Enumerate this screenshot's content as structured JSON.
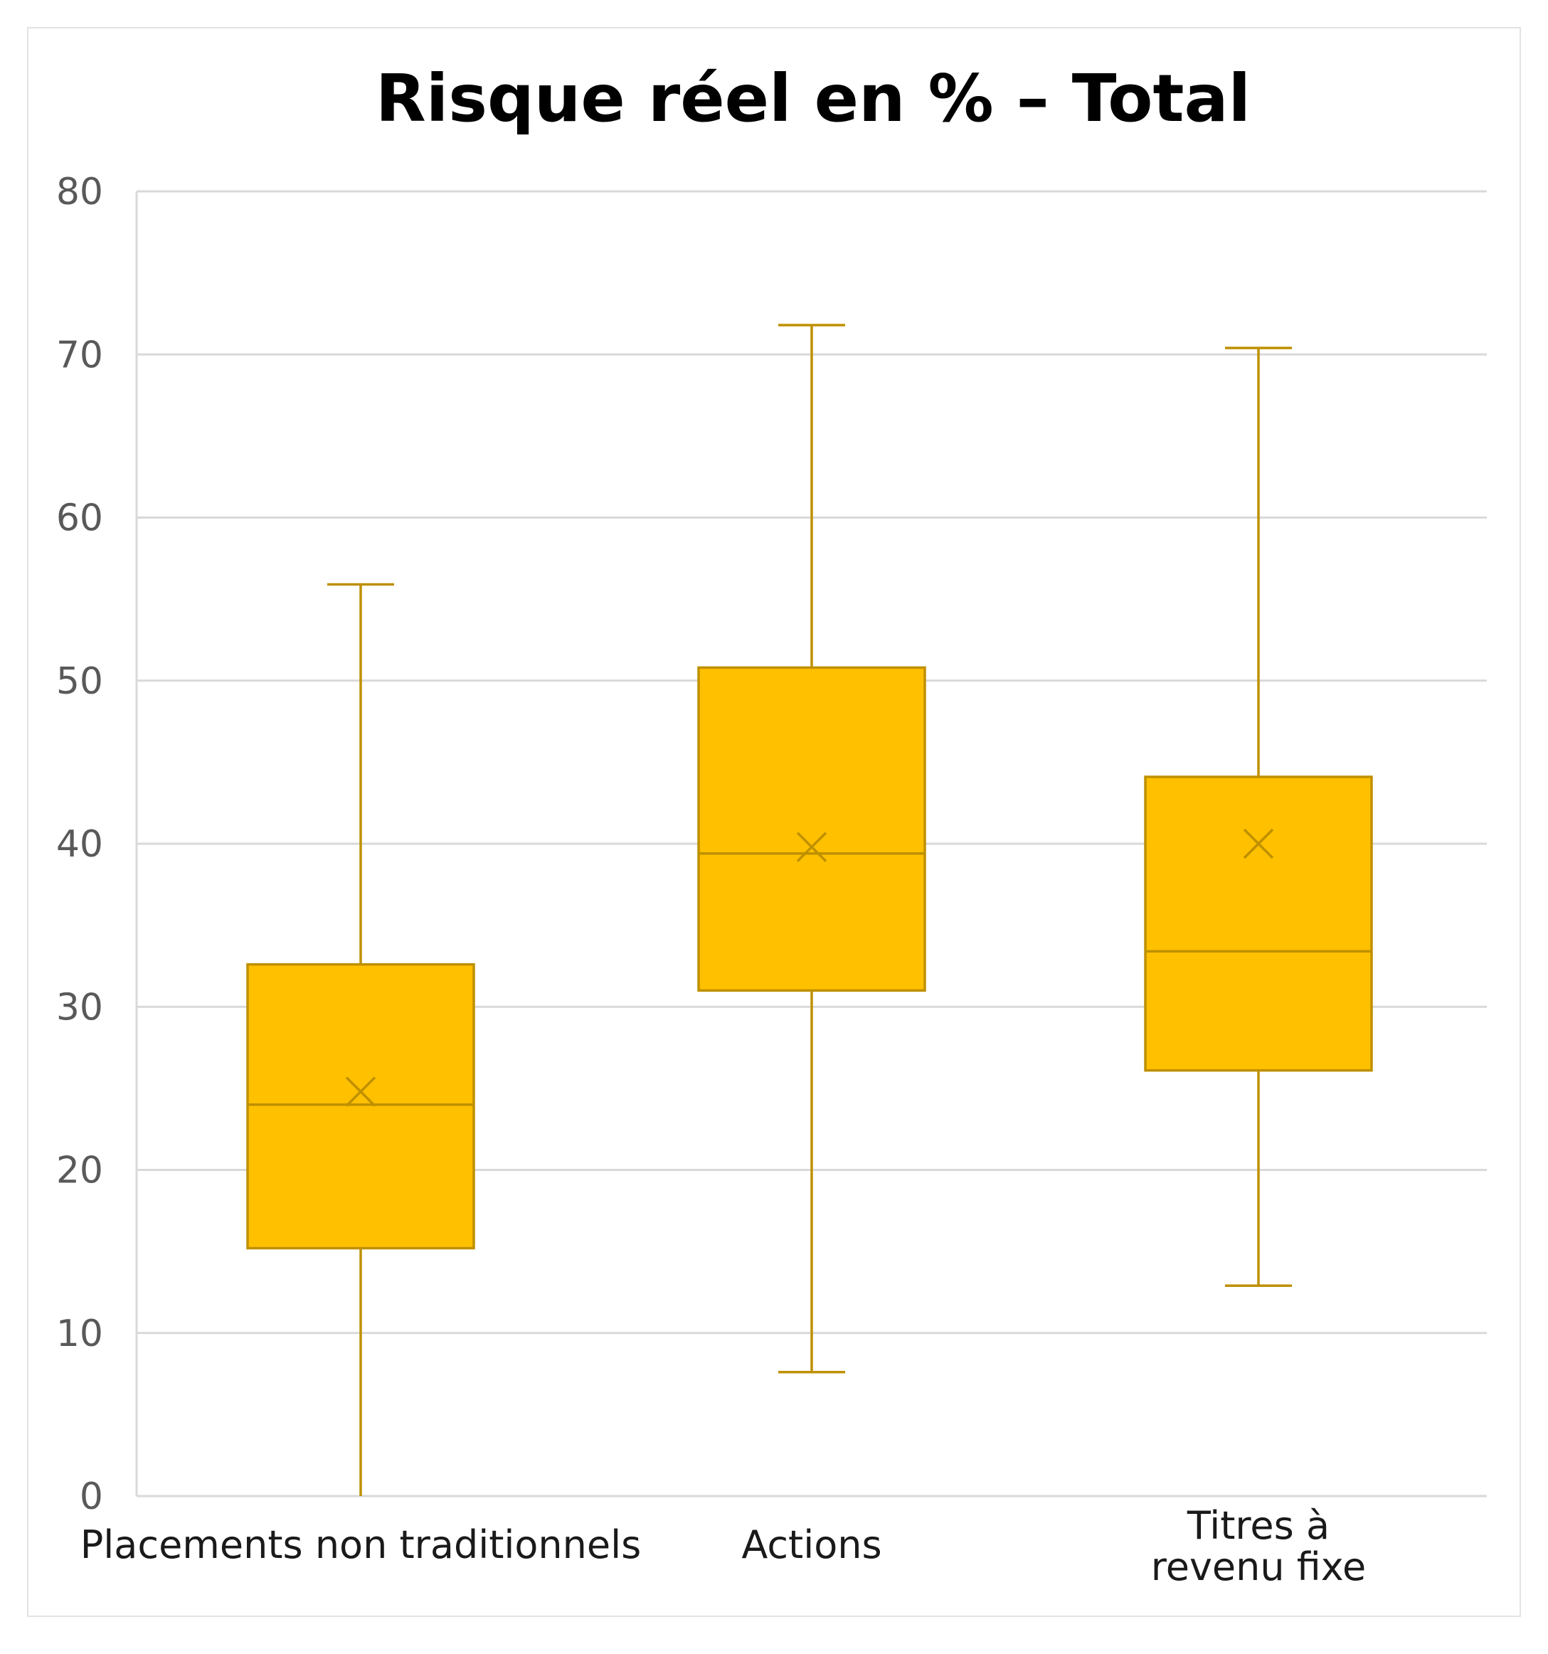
{
  "chart_data": {
    "type": "box",
    "title": "Risque réel en % – Total",
    "xlabel": "",
    "ylabel": "",
    "ylim": [
      0,
      80
    ],
    "yticks": [
      0,
      10,
      20,
      30,
      40,
      50,
      60,
      70,
      80
    ],
    "grid": true,
    "legend": "none",
    "categories": [
      [
        "Placements non traditionnels"
      ],
      [
        "Actions"
      ],
      [
        "Titres à",
        "revenu fixe"
      ]
    ],
    "boxes": [
      {
        "min": 0,
        "q1": 15.2,
        "median": 24.0,
        "q3": 32.6,
        "max": 55.9,
        "mean": 24.8
      },
      {
        "min": 7.6,
        "q1": 31.0,
        "median": 39.4,
        "q3": 50.8,
        "max": 71.8,
        "mean": 39.8
      },
      {
        "min": 12.9,
        "q1": 26.1,
        "median": 33.4,
        "q3": 44.1,
        "max": 70.4,
        "mean": 40.0
      }
    ],
    "colors": {
      "box_fill": "#FFC000",
      "box_stroke": "#BF9000",
      "grid": "#D9D9D9",
      "axis": "#D9D9D9"
    }
  }
}
